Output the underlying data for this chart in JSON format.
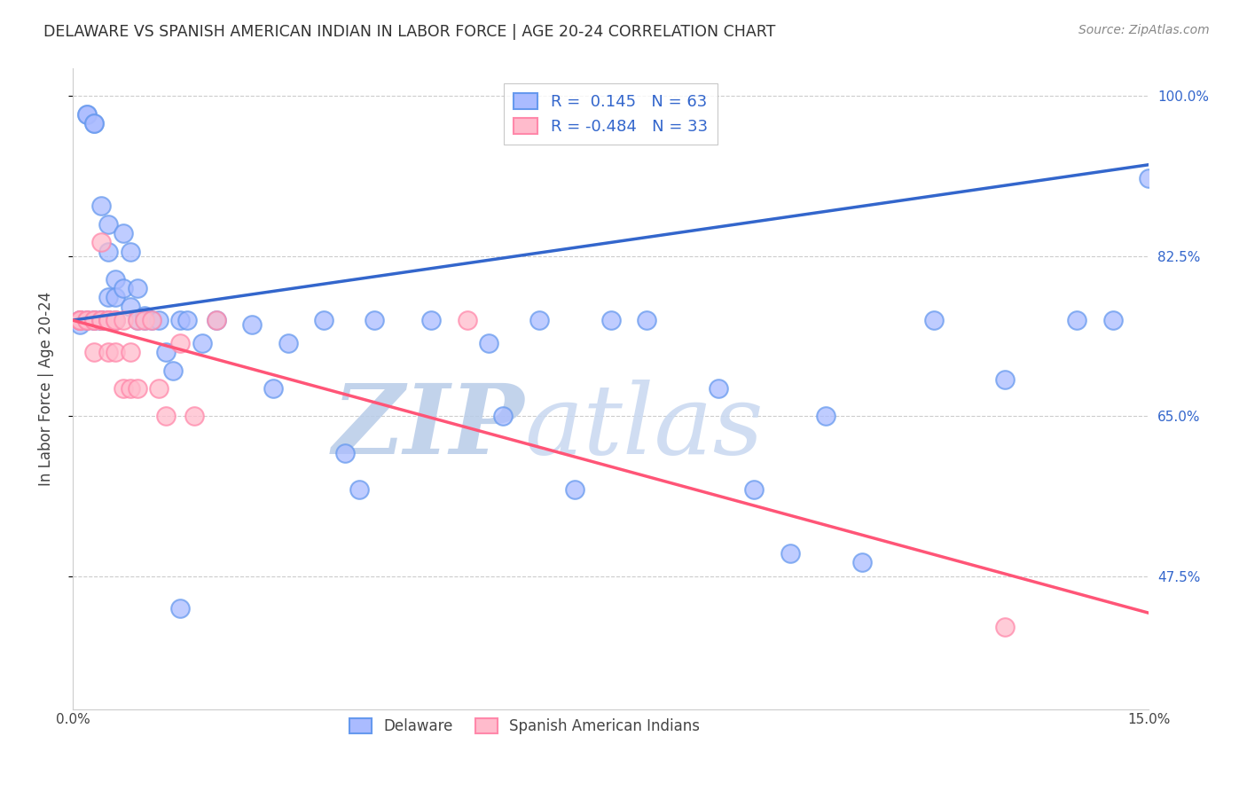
{
  "title": "DELAWARE VS SPANISH AMERICAN INDIAN IN LABOR FORCE | AGE 20-24 CORRELATION CHART",
  "source": "Source: ZipAtlas.com",
  "ylabel": "In Labor Force | Age 20-24",
  "xlim": [
    0.0,
    0.15
  ],
  "ylim": [
    0.33,
    1.03
  ],
  "xtick_positions": [
    0.0,
    0.15
  ],
  "xtick_labels": [
    "0.0%",
    "15.0%"
  ],
  "ytick_vals": [
    0.475,
    0.65,
    0.825,
    1.0
  ],
  "ytick_labels": [
    "47.5%",
    "65.0%",
    "82.5%",
    "100.0%"
  ],
  "background_color": "#ffffff",
  "grid_color": "#cccccc",
  "watermark_zip": "ZIP",
  "watermark_atlas": "atlas",
  "watermark_color": "#ccd9f0",
  "blue_scatter_face": "#aabbff",
  "blue_scatter_edge": "#6699ee",
  "pink_scatter_face": "#ffbbcc",
  "pink_scatter_edge": "#ff88aa",
  "blue_line_color": "#3366cc",
  "pink_line_color": "#ff5577",
  "legend_r_blue": " 0.145",
  "legend_n_blue": "63",
  "legend_r_pink": "-0.484",
  "legend_n_pink": "33",
  "blue_line_y0": 0.755,
  "blue_line_y1": 0.925,
  "pink_line_y0": 0.755,
  "pink_line_y1": 0.435,
  "blue_x": [
    0.001,
    0.001,
    0.001,
    0.002,
    0.002,
    0.002,
    0.003,
    0.003,
    0.003,
    0.003,
    0.004,
    0.004,
    0.004,
    0.004,
    0.005,
    0.005,
    0.005,
    0.005,
    0.005,
    0.006,
    0.006,
    0.006,
    0.007,
    0.007,
    0.008,
    0.008,
    0.009,
    0.009,
    0.01,
    0.01,
    0.011,
    0.012,
    0.013,
    0.014,
    0.015,
    0.016,
    0.018,
    0.02,
    0.025,
    0.028,
    0.03,
    0.035,
    0.038,
    0.04,
    0.042,
    0.05,
    0.058,
    0.06,
    0.065,
    0.07,
    0.075,
    0.08,
    0.09,
    0.095,
    0.1,
    0.105,
    0.11,
    0.12,
    0.13,
    0.14,
    0.145,
    0.15,
    0.015
  ],
  "blue_y": [
    0.755,
    0.755,
    0.75,
    0.98,
    0.98,
    0.755,
    0.97,
    0.97,
    0.755,
    0.755,
    0.755,
    0.755,
    0.88,
    0.755,
    0.86,
    0.83,
    0.78,
    0.755,
    0.755,
    0.8,
    0.78,
    0.755,
    0.85,
    0.79,
    0.83,
    0.77,
    0.79,
    0.755,
    0.76,
    0.755,
    0.755,
    0.755,
    0.72,
    0.7,
    0.755,
    0.755,
    0.73,
    0.755,
    0.75,
    0.68,
    0.73,
    0.755,
    0.61,
    0.57,
    0.755,
    0.755,
    0.73,
    0.65,
    0.755,
    0.57,
    0.755,
    0.755,
    0.68,
    0.57,
    0.5,
    0.65,
    0.49,
    0.755,
    0.69,
    0.755,
    0.755,
    0.91,
    0.44
  ],
  "pink_x": [
    0.001,
    0.001,
    0.001,
    0.002,
    0.002,
    0.003,
    0.003,
    0.003,
    0.004,
    0.004,
    0.004,
    0.005,
    0.005,
    0.005,
    0.005,
    0.006,
    0.006,
    0.006,
    0.007,
    0.007,
    0.008,
    0.008,
    0.009,
    0.009,
    0.01,
    0.011,
    0.012,
    0.013,
    0.015,
    0.017,
    0.02,
    0.055,
    0.13
  ],
  "pink_y": [
    0.755,
    0.755,
    0.755,
    0.755,
    0.755,
    0.755,
    0.72,
    0.755,
    0.84,
    0.755,
    0.755,
    0.755,
    0.72,
    0.755,
    0.755,
    0.755,
    0.72,
    0.755,
    0.755,
    0.68,
    0.72,
    0.68,
    0.755,
    0.68,
    0.755,
    0.755,
    0.68,
    0.65,
    0.73,
    0.65,
    0.755,
    0.755,
    0.42
  ]
}
